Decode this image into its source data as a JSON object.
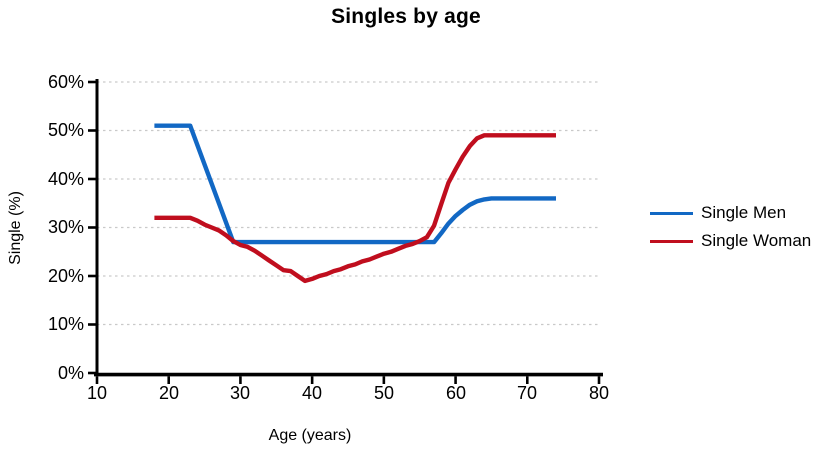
{
  "chart_data": {
    "type": "line",
    "title": "Singles by age",
    "xlabel": "Age (years)",
    "ylabel": "Single (%)",
    "xlim": [
      10,
      80
    ],
    "ylim": [
      0,
      60
    ],
    "x_ticks": [
      10,
      20,
      30,
      40,
      50,
      60,
      70,
      80
    ],
    "y_ticks": [
      0,
      10,
      20,
      30,
      40,
      50,
      60
    ],
    "x_tick_labels": [
      "10",
      "20",
      "30",
      "40",
      "50",
      "60",
      "70",
      "80"
    ],
    "y_tick_labels": [
      "0%",
      "10%",
      "20%",
      "30%",
      "40%",
      "50%",
      "60%"
    ],
    "grid": "horizontal dashed",
    "grid_color": "#C9C9C9",
    "axis_color": "#000000",
    "legend_position": "right",
    "series": [
      {
        "name": "Single Men",
        "color": "#1268C4",
        "x": [
          18,
          23,
          29,
          57,
          58,
          59,
          60,
          61,
          62,
          63,
          64,
          65,
          74
        ],
        "values": [
          51,
          51,
          27,
          27,
          28.8,
          30.8,
          32.4,
          33.6,
          34.7,
          35.4,
          35.8,
          36,
          36
        ]
      },
      {
        "name": "Single Woman",
        "color": "#C00E1E",
        "x": [
          18,
          23,
          24,
          25,
          26,
          27,
          28,
          29,
          30,
          31,
          32,
          33,
          34,
          35,
          36,
          37,
          38,
          39,
          40,
          41,
          42,
          43,
          44,
          45,
          46,
          47,
          48,
          49,
          50,
          51,
          52,
          53,
          54,
          55,
          56,
          57,
          58,
          59,
          60,
          61,
          62,
          63,
          64,
          65,
          74
        ],
        "values": [
          32,
          32,
          31.4,
          30.6,
          30,
          29.4,
          28.4,
          27.2,
          26.4,
          26,
          25.2,
          24.2,
          23.2,
          22.2,
          21.2,
          21,
          20,
          19,
          19.4,
          20,
          20.4,
          21,
          21.4,
          22,
          22.4,
          23,
          23.4,
          24,
          24.6,
          25,
          25.6,
          26.2,
          26.6,
          27.2,
          28,
          30.4,
          34.8,
          39.2,
          42,
          44.6,
          46.8,
          48.4,
          49,
          49,
          49
        ]
      }
    ]
  }
}
